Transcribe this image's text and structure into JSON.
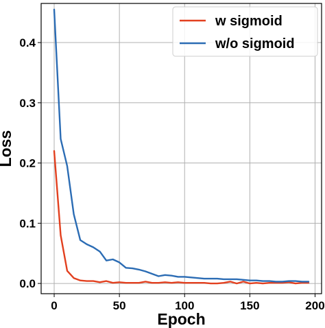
{
  "chart_data": {
    "type": "line",
    "title": "",
    "xlabel": "Epoch",
    "ylabel": "Loss",
    "xlim": [
      -10,
      205
    ],
    "ylim": [
      -0.017,
      0.465
    ],
    "xticks": [
      0,
      50,
      100,
      150,
      200
    ],
    "xtick_labels": [
      "0",
      "50",
      "100",
      "150",
      "200"
    ],
    "yticks": [
      0.0,
      0.1,
      0.2,
      0.3,
      0.4
    ],
    "ytick_labels": [
      "0.0",
      "0.1",
      "0.2",
      "0.3",
      "0.4"
    ],
    "grid": true,
    "legend_position": "top-right",
    "series": [
      {
        "name": "w sigmoid",
        "color": "#e2401f",
        "x": [
          0,
          5,
          10,
          15,
          20,
          25,
          30,
          35,
          40,
          45,
          50,
          55,
          60,
          65,
          70,
          75,
          80,
          85,
          90,
          95,
          100,
          105,
          110,
          115,
          120,
          125,
          130,
          135,
          140,
          145,
          150,
          155,
          160,
          165,
          170,
          175,
          180,
          185,
          190,
          195
        ],
        "y": [
          0.22,
          0.08,
          0.021,
          0.009,
          0.005,
          0.004,
          0.004,
          0.002,
          0.004,
          0.001,
          0.002,
          0.001,
          0.001,
          0.001,
          0.003,
          0.001,
          0.001,
          0.002,
          0.001,
          0.002,
          0.001,
          0.001,
          0.001,
          0.001,
          0.0,
          0.0,
          0.001,
          0.003,
          0.0,
          0.003,
          0.0,
          0.001,
          0.0,
          0.001,
          0.001,
          0.001,
          0.002,
          0.0,
          0.001,
          0.001
        ]
      },
      {
        "name": "w/o sigmoid",
        "color": "#2b6cb4",
        "x": [
          0,
          5,
          10,
          15,
          20,
          25,
          30,
          35,
          40,
          45,
          50,
          55,
          60,
          65,
          70,
          75,
          80,
          85,
          90,
          95,
          100,
          105,
          110,
          115,
          120,
          125,
          130,
          135,
          140,
          145,
          150,
          155,
          160,
          165,
          170,
          175,
          180,
          185,
          190,
          195
        ],
        "y": [
          0.455,
          0.24,
          0.195,
          0.115,
          0.072,
          0.065,
          0.06,
          0.053,
          0.038,
          0.04,
          0.035,
          0.026,
          0.025,
          0.023,
          0.02,
          0.016,
          0.012,
          0.014,
          0.013,
          0.011,
          0.011,
          0.01,
          0.009,
          0.008,
          0.008,
          0.008,
          0.007,
          0.007,
          0.007,
          0.006,
          0.005,
          0.005,
          0.004,
          0.004,
          0.003,
          0.003,
          0.004,
          0.004,
          0.003,
          0.003
        ]
      }
    ]
  }
}
